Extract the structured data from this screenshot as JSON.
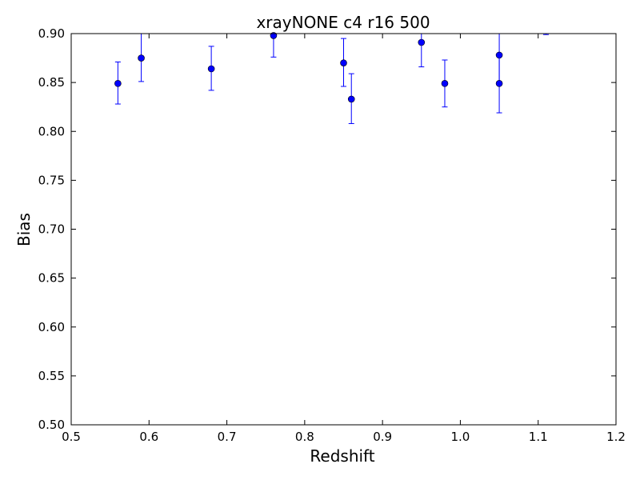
{
  "chart_data": {
    "type": "scatter",
    "title": "xrayNONE c4 r16 500",
    "xlabel": "Redshift",
    "ylabel": "Bias",
    "xlim": [
      0.5,
      1.2
    ],
    "ylim": [
      0.5,
      0.9
    ],
    "x_ticks": [
      "0.5",
      "0.6",
      "0.7",
      "0.8",
      "0.9",
      "1.0",
      "1.1",
      "1.2"
    ],
    "y_ticks": [
      "0.50",
      "0.55",
      "0.60",
      "0.65",
      "0.70",
      "0.75",
      "0.80",
      "0.85",
      "0.90"
    ],
    "grid": false,
    "series": [
      {
        "color": "#0000ff",
        "marker": "circle",
        "error_bars": true,
        "points": [
          {
            "x": 0.56,
            "y": 0.849,
            "err_low": 0.021,
            "err_high": 0.022
          },
          {
            "x": 0.59,
            "y": 0.875,
            "err_low": 0.024,
            "err_high": 0.025
          },
          {
            "x": 0.68,
            "y": 0.864,
            "err_low": 0.022,
            "err_high": 0.023
          },
          {
            "x": 0.76,
            "y": 0.898,
            "err_low": 0.022,
            "err_high": 0.022
          },
          {
            "x": 0.85,
            "y": 0.87,
            "err_low": 0.024,
            "err_high": 0.025
          },
          {
            "x": 0.86,
            "y": 0.833,
            "err_low": 0.025,
            "err_high": 0.026
          },
          {
            "x": 0.95,
            "y": 0.891,
            "err_low": 0.025,
            "err_high": 0.025
          },
          {
            "x": 0.98,
            "y": 0.849,
            "err_low": 0.024,
            "err_high": 0.024
          },
          {
            "x": 1.05,
            "y": 0.878,
            "err_low": 0.028,
            "err_high": 0.028
          },
          {
            "x": 1.05,
            "y": 0.849,
            "err_low": 0.03,
            "err_high": 0.03
          },
          {
            "x": 1.11,
            "y": 0.901,
            "err_low": 0.002,
            "err_high": 0.002
          }
        ]
      }
    ]
  }
}
